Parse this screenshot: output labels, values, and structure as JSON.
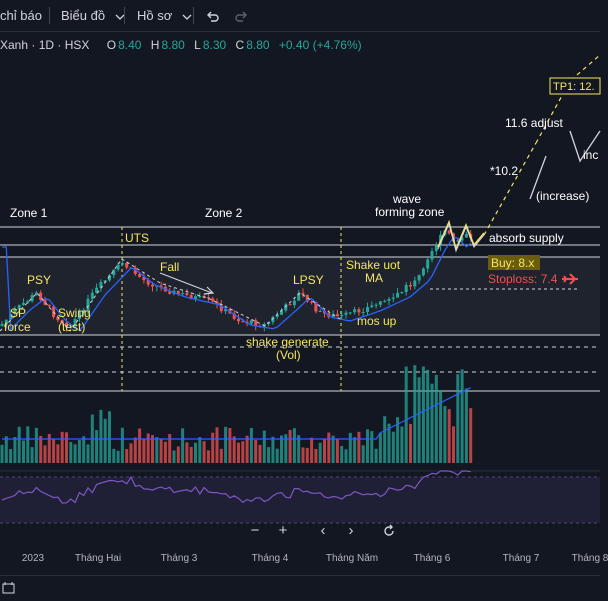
{
  "toolbar": {
    "indicators_label": "chỉ báo",
    "chart_type_label": "Biểu đồ",
    "profile_label": "Hồ sơ",
    "undo_icon": "undo-icon",
    "redo_icon": "redo-icon",
    "chevron_icon": "chevron-down-icon"
  },
  "legend": {
    "symbol": "Xanh · 1D · HSX",
    "o_label": "O",
    "o_value": "8.40",
    "h_label": "H",
    "h_value": "8.80",
    "l_label": "L",
    "l_value": "8.30",
    "c_label": "C",
    "c_value": "8.80",
    "change": "+0.40 (+4.76%)"
  },
  "annotations": {
    "zone1": "Zone 1",
    "zone2": "Zone 2",
    "psy": "PSY",
    "uts": "UTS",
    "fall": "Fall",
    "lpsy": "LPSY",
    "shake_uot_1": "Shake uot",
    "shake_uot_2": "MA",
    "wave_1": "wave",
    "wave_2": "forming zone",
    "absorb": "absorb supply",
    "buy": "Buy: 8.x",
    "stoploss": "Stoploss: 7.4",
    "sp_1": "SP",
    "sp_2": "force",
    "swing_1": "Swing",
    "swing_2": "(test)",
    "shake_gen_1": "shake generate",
    "shake_gen_2": "(Vol)",
    "mos_up": "mos up",
    "tp1": "TP1: 12.",
    "adjust": "11.6 adjust",
    "inc_cut": "inc",
    "target_102": "*10.2",
    "increase": "(increase)"
  },
  "axis": {
    "months": [
      "2023",
      "Tháng Hai",
      "Tháng 3",
      "Tháng 4",
      "Tháng Năm",
      "Tháng 6",
      "Tháng 7",
      "Tháng 8"
    ]
  },
  "controls": {
    "zoom_out": "−",
    "zoom_in": "+",
    "prev": "‹",
    "next": "›",
    "reset_icon": "reset-icon"
  },
  "colors": {
    "background": "#131722",
    "up": "#26a69a",
    "down": "#ef5350",
    "ma": "#2962ff",
    "annotation": "#f5e663",
    "rsi": "#7e57c2"
  }
}
